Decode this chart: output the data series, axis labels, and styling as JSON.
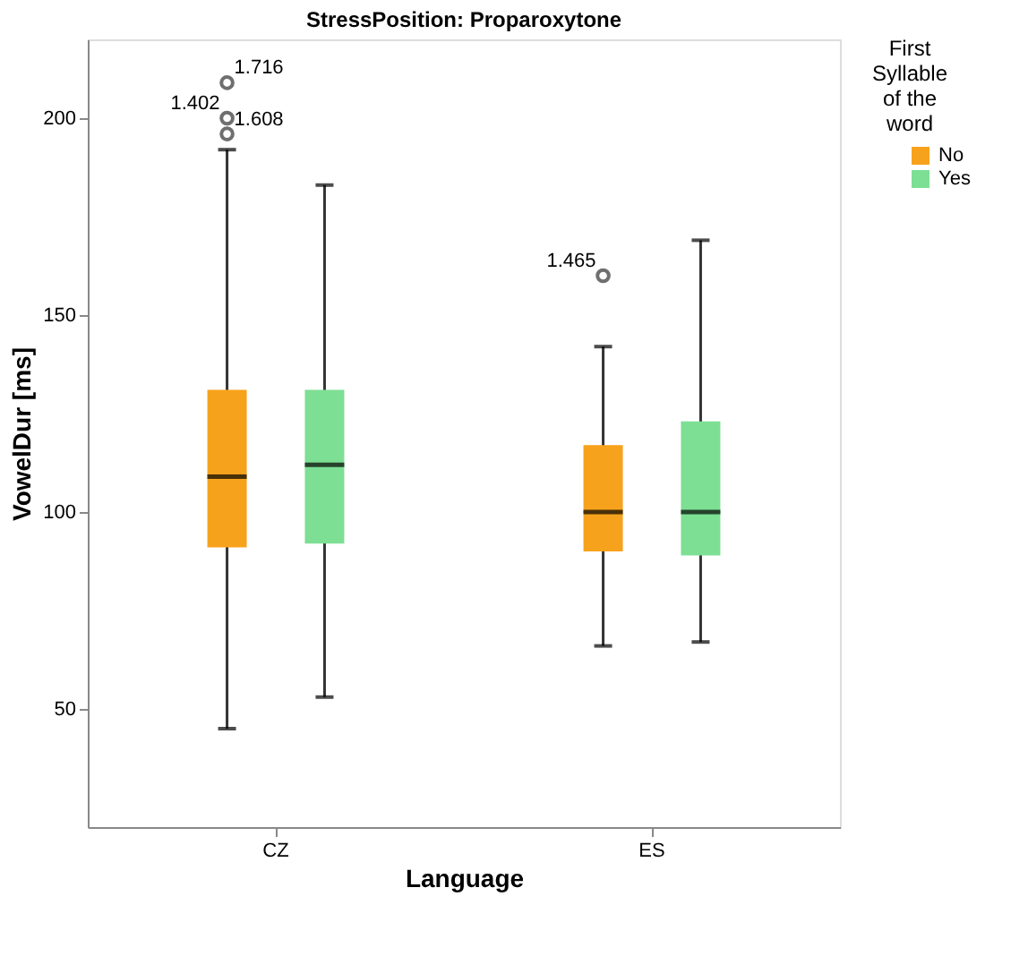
{
  "chart_data": {
    "type": "box",
    "title": "StressPosition: Proparoxytone",
    "xlabel": "Language",
    "ylabel": "VowelDur [ms]",
    "legend_title": "First Syllable of the word",
    "categories": [
      "CZ",
      "ES"
    ],
    "series": [
      {
        "name": "No",
        "color": "#f7a21c",
        "boxes": [
          {
            "low": 45,
            "q1": 91,
            "median": 109,
            "q3": 131,
            "high": 192,
            "outliers": [
              209,
              200,
              196
            ]
          },
          {
            "low": 66,
            "q1": 90,
            "median": 100,
            "q3": 117,
            "high": 142,
            "outliers": [
              160
            ]
          }
        ]
      },
      {
        "name": "Yes",
        "color": "#7ddf94",
        "boxes": [
          {
            "low": 53,
            "q1": 92,
            "median": 112,
            "q3": 131,
            "high": 183
          },
          {
            "low": 67,
            "q1": 89,
            "median": 100,
            "q3": 123,
            "high": 169
          }
        ]
      }
    ],
    "annotations": [
      "1.716",
      "1.402",
      "1.608",
      "1.465"
    ],
    "ylim": [
      20,
      220
    ],
    "yticks": [
      50,
      100,
      150,
      200
    ],
    "grid": false,
    "legend": "right"
  }
}
